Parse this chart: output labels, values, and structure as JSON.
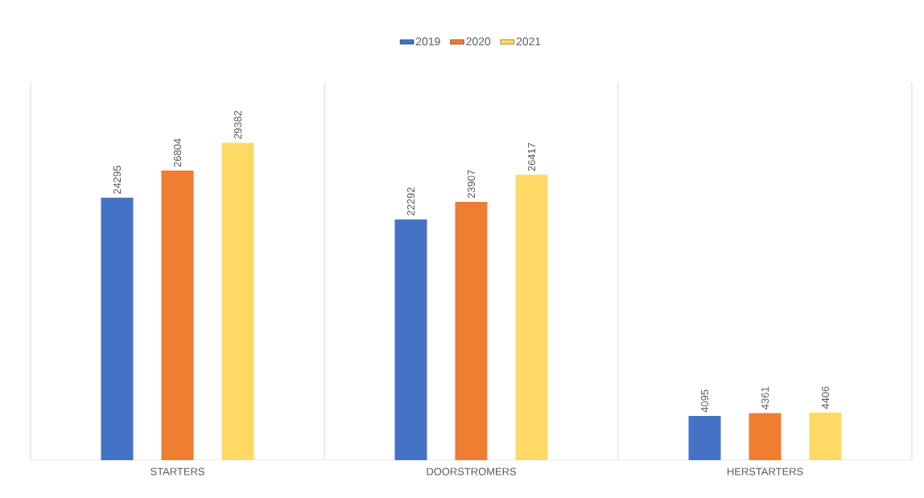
{
  "chart_data": {
    "type": "bar",
    "categories": [
      "STARTERS",
      "DOORSTROMERS",
      "HERSTARTERS"
    ],
    "series": [
      {
        "name": "2019",
        "color": "#4472c4",
        "values": [
          24295,
          22292,
          4095
        ]
      },
      {
        "name": "2020",
        "color": "#ed7d31",
        "values": [
          26804,
          23907,
          4361
        ]
      },
      {
        "name": "2021",
        "color": "#ffd966",
        "values": [
          29382,
          26417,
          4406
        ]
      }
    ],
    "ylim": [
      0,
      35000
    ],
    "data_labels": true,
    "grid": "x",
    "legend": "top",
    "tick_labels": "x"
  }
}
